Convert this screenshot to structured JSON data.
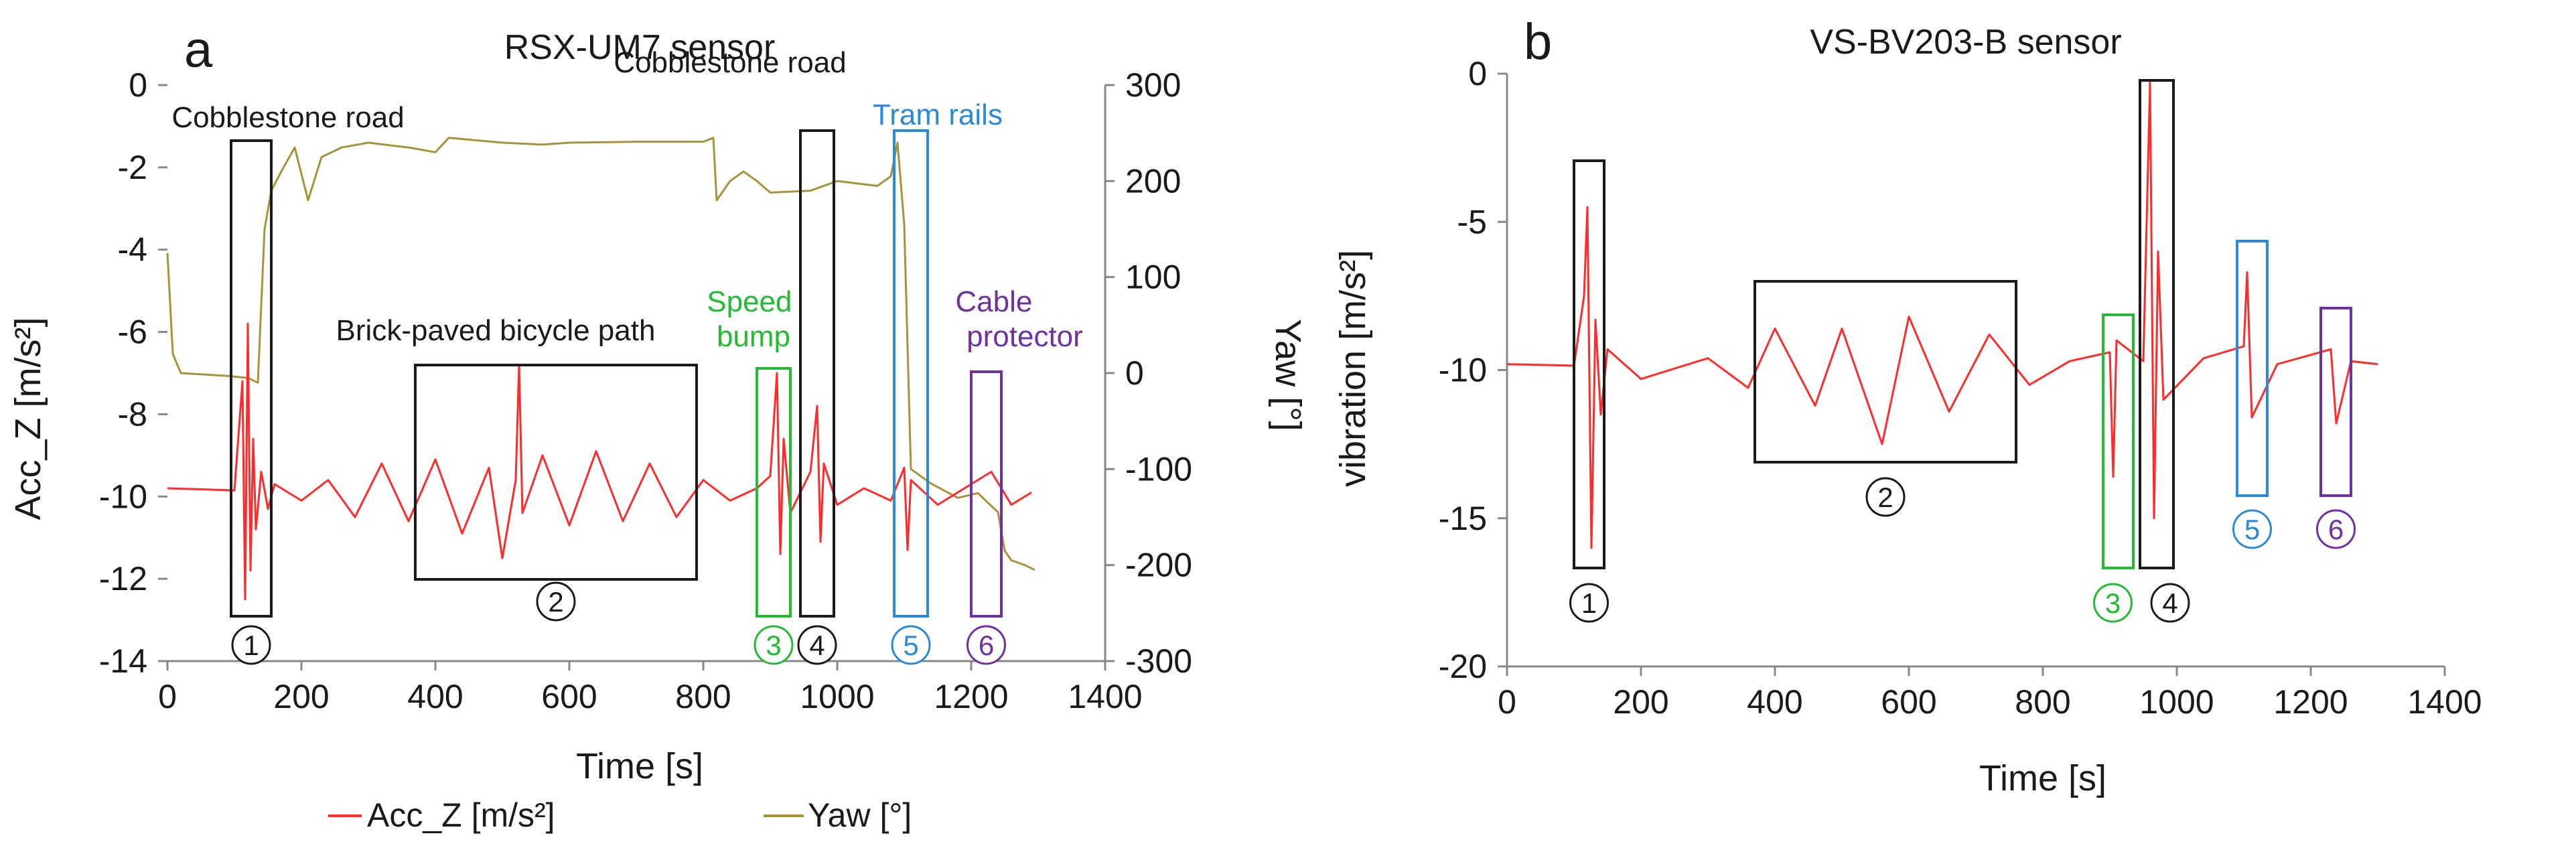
{
  "colors": {
    "acc": "#ff2a2a",
    "yaw": "#a89238",
    "black": "#1a1a1a",
    "green": "#22bb33",
    "blue": "#2a8ad8",
    "purple": "#7030a0",
    "axis": "#888888"
  },
  "chart_data": [
    {
      "panel_letter": "a",
      "type": "line",
      "title": "RSX-UM7 sensor",
      "xlabel": "Time [s]",
      "ylabel": "Acc_Z [m/s²]",
      "y2label": "Yaw [°]",
      "xlim": [
        0,
        1400
      ],
      "ylim": [
        -14,
        0
      ],
      "y2lim": [
        -300,
        300
      ],
      "xticks": [
        "0",
        "200",
        "400",
        "600",
        "800",
        "1000",
        "1200",
        "1400"
      ],
      "yticks": [
        "0",
        "-2",
        "-4",
        "-6",
        "-8",
        "-10",
        "-12",
        "-14"
      ],
      "y2ticks": [
        "300",
        "200",
        "100",
        "0",
        "-100",
        "-200",
        "-300"
      ],
      "legend": [
        {
          "name": "Acc_Z [m/s²]",
          "color_key": "acc"
        },
        {
          "name": "Yaw [°]",
          "color_key": "yaw"
        }
      ],
      "series": [
        {
          "name": "Acc_Z [m/s²]",
          "color_key": "acc",
          "axis": "left",
          "points": [
            [
              0,
              -9.8
            ],
            [
              100,
              -9.85
            ],
            [
              112,
              -7.2
            ],
            [
              116,
              -12.5
            ],
            [
              120,
              -5.8
            ],
            [
              124,
              -11.8
            ],
            [
              128,
              -8.6
            ],
            [
              132,
              -10.8
            ],
            [
              140,
              -9.4
            ],
            [
              150,
              -10.3
            ],
            [
              160,
              -9.7
            ],
            [
              200,
              -10.1
            ],
            [
              240,
              -9.6
            ],
            [
              280,
              -10.5
            ],
            [
              320,
              -9.2
            ],
            [
              360,
              -10.6
            ],
            [
              400,
              -9.1
            ],
            [
              440,
              -10.9
            ],
            [
              480,
              -9.3
            ],
            [
              500,
              -11.5
            ],
            [
              520,
              -9.6
            ],
            [
              525,
              -6.8
            ],
            [
              530,
              -10.4
            ],
            [
              560,
              -9.0
            ],
            [
              600,
              -10.7
            ],
            [
              640,
              -8.9
            ],
            [
              680,
              -10.6
            ],
            [
              720,
              -9.2
            ],
            [
              760,
              -10.5
            ],
            [
              800,
              -9.6
            ],
            [
              840,
              -10.1
            ],
            [
              880,
              -9.8
            ],
            [
              900,
              -9.5
            ],
            [
              910,
              -7.0
            ],
            [
              915,
              -11.4
            ],
            [
              920,
              -8.6
            ],
            [
              930,
              -10.4
            ],
            [
              960,
              -9.4
            ],
            [
              970,
              -7.8
            ],
            [
              975,
              -11.1
            ],
            [
              980,
              -9.2
            ],
            [
              1000,
              -10.2
            ],
            [
              1040,
              -9.8
            ],
            [
              1080,
              -10.1
            ],
            [
              1100,
              -9.3
            ],
            [
              1105,
              -11.3
            ],
            [
              1110,
              -9.6
            ],
            [
              1150,
              -10.2
            ],
            [
              1200,
              -9.7
            ],
            [
              1230,
              -9.4
            ],
            [
              1260,
              -10.2
            ],
            [
              1290,
              -9.9
            ]
          ],
          "annotations": [
            {
              "label": "Cobblestone road",
              "number": "1",
              "color_key": "black",
              "x_range": [
                95,
                155
              ]
            },
            {
              "label": "Brick-paved bicycle path",
              "number": "2",
              "color_key": "black",
              "x_range": [
                370,
                790
              ]
            },
            {
              "label": "Speed bump",
              "number": "3",
              "color_key": "green",
              "x_range": [
                880,
                930
              ]
            },
            {
              "label": "Cobblestone road",
              "number": "4",
              "color_key": "black",
              "x_range": [
                945,
                995
              ]
            },
            {
              "label": "Tram rails",
              "number": "5",
              "color_key": "blue",
              "x_range": [
                1085,
                1135
              ]
            },
            {
              "label": "Cable protector",
              "number": "6",
              "color_key": "purple",
              "x_range": [
                1200,
                1245
              ]
            }
          ]
        },
        {
          "name": "Yaw [°]",
          "color_key": "yaw",
          "axis": "right",
          "points": [
            [
              0,
              125
            ],
            [
              8,
              20
            ],
            [
              20,
              0
            ],
            [
              90,
              -3
            ],
            [
              120,
              -5
            ],
            [
              135,
              -10
            ],
            [
              145,
              150
            ],
            [
              155,
              190
            ],
            [
              170,
              210
            ],
            [
              190,
              235
            ],
            [
              210,
              180
            ],
            [
              230,
              225
            ],
            [
              260,
              235
            ],
            [
              300,
              240
            ],
            [
              360,
              235
            ],
            [
              400,
              230
            ],
            [
              420,
              245
            ],
            [
              500,
              240
            ],
            [
              560,
              238
            ],
            [
              600,
              240
            ],
            [
              700,
              241
            ],
            [
              800,
              241
            ],
            [
              815,
              245
            ],
            [
              820,
              180
            ],
            [
              840,
              200
            ],
            [
              860,
              210
            ],
            [
              880,
              200
            ],
            [
              900,
              188
            ],
            [
              960,
              190
            ],
            [
              1000,
              200
            ],
            [
              1060,
              195
            ],
            [
              1080,
              205
            ],
            [
              1090,
              240
            ],
            [
              1100,
              155
            ],
            [
              1110,
              -100
            ],
            [
              1140,
              -115
            ],
            [
              1180,
              -130
            ],
            [
              1210,
              -125
            ],
            [
              1240,
              -145
            ],
            [
              1250,
              -185
            ],
            [
              1260,
              -195
            ],
            [
              1280,
              -200
            ],
            [
              1295,
              -205
            ]
          ]
        }
      ]
    },
    {
      "panel_letter": "b",
      "type": "line",
      "title": "VS-BV203-B sensor",
      "xlabel": "Time [s]",
      "ylabel": "vibration [m/s²]",
      "xlim": [
        0,
        1400
      ],
      "ylim": [
        -20,
        0
      ],
      "xticks": [
        "0",
        "200",
        "400",
        "600",
        "800",
        "1000",
        "1200",
        "1400"
      ],
      "yticks": [
        "0",
        "-5",
        "-10",
        "-15",
        "-20"
      ],
      "series": [
        {
          "name": "vibration [m/s²]",
          "color_key": "acc",
          "axis": "left",
          "points": [
            [
              0,
              -9.8
            ],
            [
              100,
              -9.85
            ],
            [
              115,
              -7.5
            ],
            [
              120,
              -4.5
            ],
            [
              126,
              -16.0
            ],
            [
              132,
              -8.3
            ],
            [
              140,
              -11.5
            ],
            [
              150,
              -9.3
            ],
            [
              200,
              -10.3
            ],
            [
              300,
              -9.6
            ],
            [
              360,
              -10.6
            ],
            [
              400,
              -8.6
            ],
            [
              460,
              -11.2
            ],
            [
              500,
              -8.6
            ],
            [
              560,
              -12.5
            ],
            [
              600,
              -8.2
            ],
            [
              660,
              -11.4
            ],
            [
              720,
              -8.8
            ],
            [
              780,
              -10.5
            ],
            [
              840,
              -9.7
            ],
            [
              900,
              -9.4
            ],
            [
              905,
              -13.6
            ],
            [
              910,
              -9.0
            ],
            [
              950,
              -9.7
            ],
            [
              960,
              -0.3
            ],
            [
              966,
              -15.0
            ],
            [
              972,
              -6.0
            ],
            [
              980,
              -11.0
            ],
            [
              1040,
              -9.6
            ],
            [
              1100,
              -9.2
            ],
            [
              1105,
              -6.7
            ],
            [
              1112,
              -11.6
            ],
            [
              1150,
              -9.8
            ],
            [
              1230,
              -9.3
            ],
            [
              1238,
              -11.8
            ],
            [
              1260,
              -9.7
            ],
            [
              1300,
              -9.8
            ]
          ],
          "annotations": [
            {
              "number": "1",
              "color_key": "black",
              "x_range": [
                100,
                145
              ]
            },
            {
              "number": "2",
              "color_key": "black",
              "x_range": [
                370,
                760
              ]
            },
            {
              "number": "3",
              "color_key": "green",
              "x_range": [
                890,
                935
              ]
            },
            {
              "number": "4",
              "color_key": "black",
              "x_range": [
                945,
                995
              ]
            },
            {
              "number": "5",
              "color_key": "blue",
              "x_range": [
                1090,
                1135
              ]
            },
            {
              "number": "6",
              "color_key": "purple",
              "x_range": [
                1215,
                1260
              ]
            }
          ]
        }
      ]
    }
  ]
}
